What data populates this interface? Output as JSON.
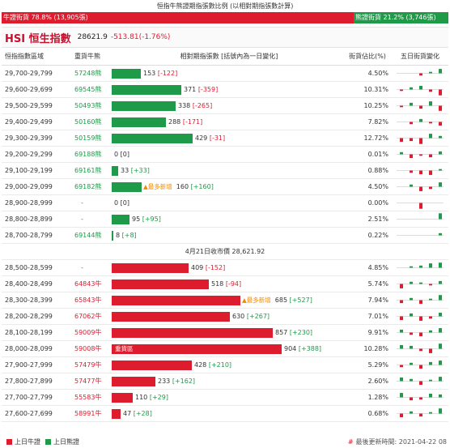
{
  "ratio": {
    "title": "恒指牛熊證期指張數比例 (以相對期指張數計算)",
    "bull_label": "牛證街貨 78.8% (13,905張)",
    "bear_label": "熊證街貨 21.2% (3,746張)",
    "bull_fraction": 0.788,
    "bear_fraction": 0.212
  },
  "index": {
    "name": "HSI 恒生指數",
    "price": "28621.9",
    "change": "-513.81(-1.76%)"
  },
  "columns": {
    "range": "恒指指數區域",
    "code": "重貨牛熊",
    "bar": "相對期指張數 [括號內為一日變化]",
    "pct": "街貨佔比(%)",
    "trend": "五日街貨變化"
  },
  "close_label": "4月21日收市價 28,621.92",
  "colors": {
    "bull": "#dd1c2e",
    "bear": "#1e9a48",
    "new_tag": "#f08a00"
  },
  "bear_rows": [
    {
      "range": "29,700-29,799",
      "code": "57248熊",
      "value": "153",
      "change": "[-122]",
      "change_sign": "neg",
      "pct": "4.50%",
      "bar_value": 153,
      "tag": "",
      "trend": [
        0,
        0,
        -0.3,
        0.2,
        0.6
      ]
    },
    {
      "range": "29,600-29,699",
      "code": "69545熊",
      "value": "371",
      "change": "[-359]",
      "change_sign": "neg",
      "pct": "10.31%",
      "bar_value": 371,
      "tag": "",
      "trend": [
        -0.2,
        0.3,
        0.5,
        -0.3,
        -0.8
      ]
    },
    {
      "range": "29,500-29,599",
      "code": "50493熊",
      "value": "338",
      "change": "[-265]",
      "change_sign": "neg",
      "pct": "10.25%",
      "bar_value": 338,
      "tag": "",
      "trend": [
        -0.2,
        0.4,
        -0.4,
        0.6,
        -0.7
      ]
    },
    {
      "range": "29,400-29,499",
      "code": "50160熊",
      "value": "288",
      "change": "[-171]",
      "change_sign": "neg",
      "pct": "7.82%",
      "bar_value": 288,
      "tag": "",
      "trend": [
        0,
        -0.3,
        0.4,
        -0.2,
        -0.5
      ]
    },
    {
      "range": "29,300-29,399",
      "code": "50159熊",
      "value": "429",
      "change": "[-31]",
      "change_sign": "neg",
      "pct": "12.72%",
      "bar_value": 429,
      "tag": "",
      "trend": [
        -0.5,
        -0.4,
        -0.8,
        0.6,
        0.3
      ]
    },
    {
      "range": "29,200-29,299",
      "code": "69188熊",
      "value": "0",
      "change": "[0]",
      "change_sign": "zero",
      "pct": "0.01%",
      "bar_value": 0,
      "tag": "",
      "trend": [
        0.3,
        -0.5,
        -0.2,
        -0.4,
        0.4
      ]
    },
    {
      "range": "29,100-29,199",
      "code": "69161熊",
      "value": "33",
      "change": "[+33]",
      "change_sign": "pos",
      "pct": "0.88%",
      "bar_value": 33,
      "tag": "",
      "trend": [
        0,
        -0.3,
        -0.5,
        -0.6,
        0.2
      ]
    },
    {
      "range": "29,000-29,099",
      "code": "69182熊",
      "value": "160",
      "change": "[+160]",
      "change_sign": "pos",
      "pct": "4.50%",
      "bar_value": 160,
      "tag": "▲最多新增",
      "trend": [
        0,
        0.3,
        -0.6,
        -0.3,
        0.6
      ]
    },
    {
      "range": "28,900-28,999",
      "code": "-",
      "value": "0",
      "change": "[0]",
      "change_sign": "zero",
      "pct": "0.00%",
      "bar_value": 0,
      "tag": "",
      "trend": [
        0,
        0,
        -0.8,
        0,
        0
      ]
    },
    {
      "range": "28,800-28,899",
      "code": "-",
      "value": "95",
      "change": "[+95]",
      "change_sign": "pos",
      "pct": "2.51%",
      "bar_value": 95,
      "tag": "",
      "trend": [
        0,
        0,
        0,
        0,
        0.8
      ]
    },
    {
      "range": "28,700-28,799",
      "code": "69144熊",
      "value": "8",
      "change": "[+8]",
      "change_sign": "pos",
      "pct": "0.22%",
      "bar_value": 8,
      "tag": "",
      "trend": [
        0,
        0,
        0,
        0,
        0.3
      ]
    }
  ],
  "bull_rows": [
    {
      "range": "28,500-28,599",
      "code": "-",
      "value": "409",
      "change": "[-152]",
      "change_sign": "neg",
      "pct": "4.85%",
      "bar_value": 409,
      "tag": "",
      "trend": [
        0,
        0.2,
        0.3,
        0.6,
        0.7
      ]
    },
    {
      "range": "28,400-28,499",
      "code": "64843牛",
      "value": "518",
      "change": "[-94]",
      "change_sign": "neg",
      "pct": "5.74%",
      "bar_value": 518,
      "tag": "",
      "trend": [
        -0.6,
        0.3,
        0.2,
        -0.2,
        0.4
      ]
    },
    {
      "range": "28,300-28,399",
      "code": "65843牛",
      "value": "685",
      "change": "[+527]",
      "change_sign": "pos",
      "pct": "7.94%",
      "bar_value": 685,
      "tag": "▲最多新增",
      "trend": [
        -0.4,
        0.3,
        -0.5,
        0.2,
        0.7
      ]
    },
    {
      "range": "28,200-28,299",
      "code": "67062牛",
      "value": "630",
      "change": "[+267]",
      "change_sign": "pos",
      "pct": "7.01%",
      "bar_value": 630,
      "tag": "",
      "trend": [
        -0.5,
        0.4,
        -0.6,
        -0.3,
        0.5
      ]
    },
    {
      "range": "28,100-28,199",
      "code": "59009牛",
      "value": "857",
      "change": "[+230]",
      "change_sign": "pos",
      "pct": "9.91%",
      "bar_value": 857,
      "tag": "",
      "trend": [
        0.4,
        -0.3,
        -0.5,
        0.3,
        0.6
      ]
    },
    {
      "range": "28,000-28,099",
      "code": "59008牛",
      "value": "904",
      "change": "[+388]",
      "change_sign": "pos",
      "pct": "10.28%",
      "bar_value": 904,
      "tag": "重貨區",
      "trend": [
        0.5,
        0.4,
        -0.3,
        -0.6,
        0.7
      ]
    },
    {
      "range": "27,900-27,999",
      "code": "57479牛",
      "value": "428",
      "change": "[+210]",
      "change_sign": "pos",
      "pct": "5.29%",
      "bar_value": 428,
      "tag": "",
      "trend": [
        -0.3,
        0.3,
        -0.5,
        0.4,
        0.6
      ]
    },
    {
      "range": "27,800-27,899",
      "code": "57477牛",
      "value": "233",
      "change": "[+162]",
      "change_sign": "pos",
      "pct": "2.60%",
      "bar_value": 233,
      "tag": "",
      "trend": [
        0.5,
        0.3,
        -0.5,
        0.2,
        0.6
      ]
    },
    {
      "range": "27,700-27,799",
      "code": "55583牛",
      "value": "110",
      "change": "[+29]",
      "change_sign": "pos",
      "pct": "1.28%",
      "bar_value": 110,
      "tag": "",
      "trend": [
        0.6,
        -0.4,
        -0.3,
        0.5,
        0.4
      ]
    },
    {
      "range": "27,600-27,699",
      "code": "58991牛",
      "value": "47",
      "change": "[+28]",
      "change_sign": "pos",
      "pct": "0.68%",
      "bar_value": 47,
      "tag": "",
      "trend": [
        -0.5,
        0.3,
        -0.4,
        0.2,
        0.7
      ]
    }
  ],
  "legend": {
    "bull": "上日牛證",
    "bear": "上日熊證"
  },
  "footer": {
    "hash": "#",
    "updated": "最後更新時間: 2021-04-22 08"
  }
}
